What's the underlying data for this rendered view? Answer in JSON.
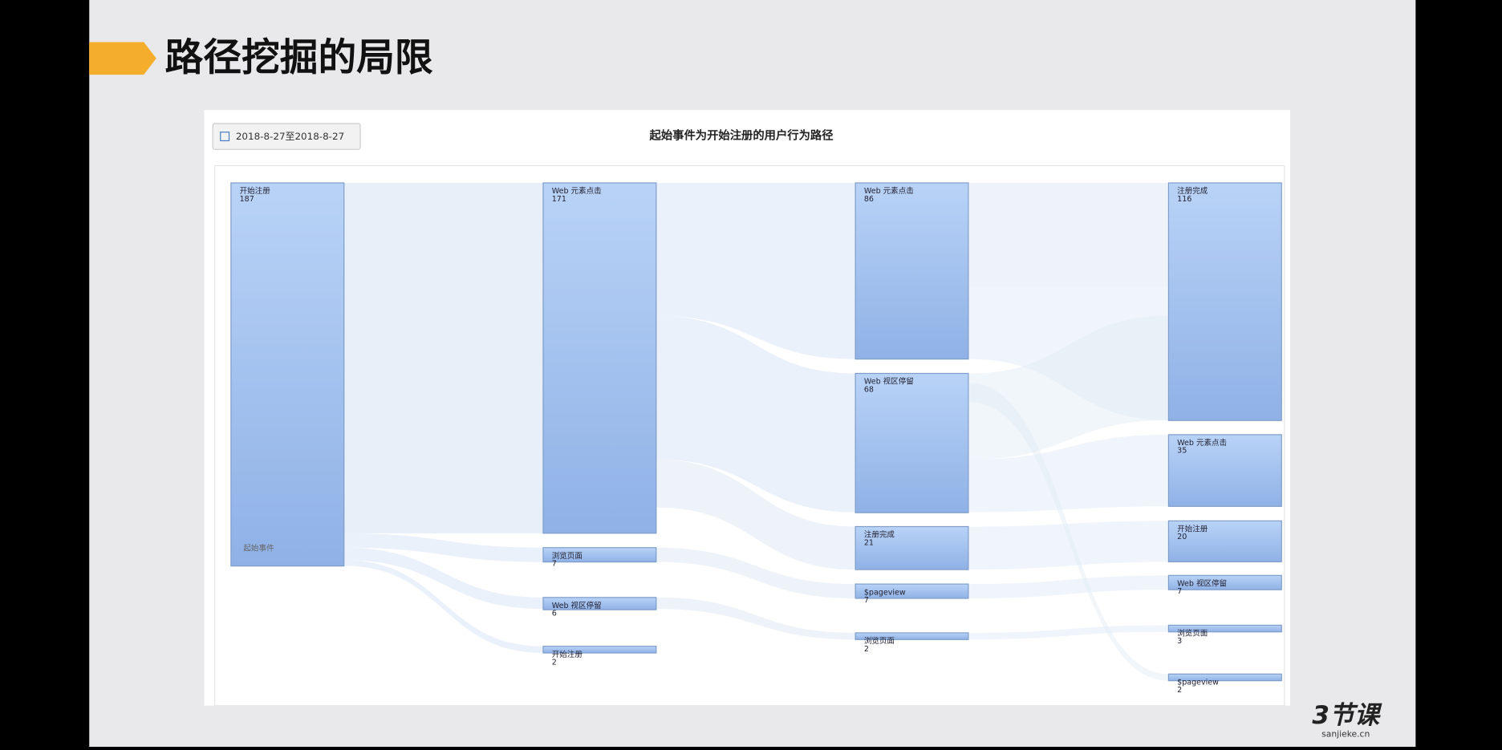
{
  "slide": {
    "title": "路径挖掘的局限"
  },
  "panel": {
    "date_range": "2018-8-27至2018-8-27",
    "title": "起始事件为开始注册的用户行为路径",
    "start_label": "起始事件"
  },
  "columns": [
    [
      {
        "label": "开始注册",
        "value": "187"
      }
    ],
    [
      {
        "label": "Web 元素点击",
        "value": "171"
      },
      {
        "label": "浏览页面",
        "value": "7"
      },
      {
        "label": "Web 视区停留",
        "value": "6"
      },
      {
        "label": "开始注册",
        "value": "2"
      }
    ],
    [
      {
        "label": "Web 元素点击",
        "value": "86"
      },
      {
        "label": "Web 视区停留",
        "value": "68"
      },
      {
        "label": "注册完成",
        "value": "21"
      },
      {
        "label": "$pageview",
        "value": "7"
      },
      {
        "label": "浏览页面",
        "value": "2"
      }
    ],
    [
      {
        "label": "注册完成",
        "value": "116"
      },
      {
        "label": "Web 元素点击",
        "value": "35"
      },
      {
        "label": "开始注册",
        "value": "20"
      },
      {
        "label": "Web 视区停留",
        "value": "7"
      },
      {
        "label": "浏览页面",
        "value": "3"
      },
      {
        "label": "$pageview",
        "value": "2"
      }
    ]
  ],
  "logo": {
    "brand": "3节课",
    "site": "sanjieke.cn"
  }
}
